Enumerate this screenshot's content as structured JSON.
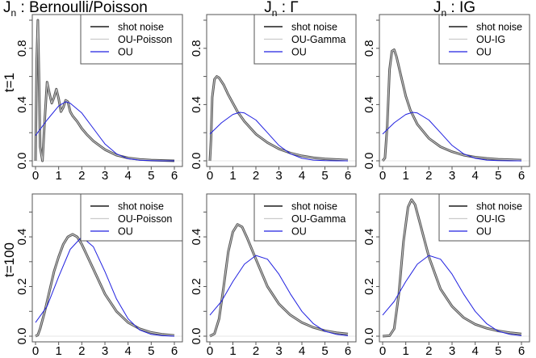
{
  "figure": {
    "row_labels": [
      "t=1",
      "t=100"
    ],
    "col_titles": [
      {
        "main": "J",
        "sub": "n",
        "rest": " :  Bernoulli/Poisson"
      },
      {
        "main": "J",
        "sub": "n",
        "rest": " :  Γ"
      },
      {
        "main": "J",
        "sub": "n",
        "rest": " :  IG"
      }
    ],
    "colors": {
      "shot_noise": "#555555",
      "ou_jump": "#cccccc",
      "ou": "#2020e0",
      "frame": "#555555"
    }
  },
  "chart_data": [
    {
      "type": "line",
      "row": 0,
      "col": 0,
      "title": "Jn : Bernoulli/Poisson",
      "ylabel": "t=1",
      "xlabel": "",
      "xlim": [
        0,
        6
      ],
      "ylim": [
        0,
        1.0
      ],
      "xticks": [
        0,
        1,
        2,
        3,
        4,
        5,
        6
      ],
      "yticks": [
        0.0,
        0.4,
        0.8
      ],
      "yticks_minor": [
        0.2,
        0.6,
        1.0
      ],
      "legend": [
        "shot noise",
        "OU-Poisson",
        "OU"
      ],
      "series": [
        {
          "name": "shot noise",
          "x": [
            0,
            0.05,
            0.1,
            0.15,
            0.2,
            0.3,
            0.4,
            0.5,
            0.6,
            0.7,
            0.8,
            0.9,
            1.0,
            1.1,
            1.2,
            1.3,
            1.4,
            1.5,
            1.6,
            1.8,
            2.0,
            2.2,
            2.5,
            3.0,
            3.5,
            4.0,
            4.5,
            5.0,
            6.0
          ],
          "y": [
            0.0,
            0.7,
            1.0,
            0.6,
            0.1,
            0.0,
            0.3,
            0.56,
            0.48,
            0.41,
            0.45,
            0.51,
            0.44,
            0.35,
            0.38,
            0.43,
            0.42,
            0.35,
            0.32,
            0.28,
            0.23,
            0.19,
            0.14,
            0.08,
            0.04,
            0.02,
            0.01,
            0.005,
            0.0
          ]
        },
        {
          "name": "OU-Poisson",
          "x": [
            0,
            0.05,
            0.1,
            0.15,
            0.2,
            0.3,
            0.4,
            0.5,
            0.6,
            0.7,
            0.8,
            0.9,
            1.0,
            1.1,
            1.2,
            1.3,
            1.4,
            1.5,
            1.6,
            1.8,
            2.0,
            2.2,
            2.5,
            3.0,
            3.5,
            4.0,
            4.5,
            5.0,
            6.0
          ],
          "y": [
            0.0,
            0.7,
            1.0,
            0.6,
            0.1,
            0.0,
            0.3,
            0.56,
            0.48,
            0.41,
            0.45,
            0.51,
            0.44,
            0.35,
            0.38,
            0.43,
            0.42,
            0.35,
            0.32,
            0.28,
            0.23,
            0.19,
            0.14,
            0.08,
            0.04,
            0.02,
            0.01,
            0.005,
            0.0
          ]
        },
        {
          "name": "OU",
          "x": [
            0,
            0.5,
            1.0,
            1.3,
            1.5,
            2.0,
            2.5,
            3.0,
            3.5,
            4.0,
            4.5,
            5.0,
            5.5,
            6.0
          ],
          "y": [
            0.18,
            0.29,
            0.39,
            0.42,
            0.41,
            0.34,
            0.23,
            0.12,
            0.05,
            0.015,
            0.004,
            0.001,
            0.0,
            0.0
          ]
        }
      ]
    },
    {
      "type": "line",
      "row": 0,
      "col": 1,
      "title": "Jn : Γ",
      "ylabel": "",
      "xlabel": "",
      "xlim": [
        0,
        6
      ],
      "ylim": [
        0,
        1.0
      ],
      "xticks": [
        0,
        1,
        2,
        3,
        4,
        5,
        6
      ],
      "yticks": [
        0.0,
        0.4,
        0.8
      ],
      "yticks_minor": [
        0.2,
        0.6,
        1.0
      ],
      "legend": [
        "shot noise",
        "OU-Gamma",
        "OU"
      ],
      "series": [
        {
          "name": "shot noise",
          "x": [
            0,
            0.05,
            0.1,
            0.2,
            0.3,
            0.4,
            0.6,
            0.8,
            1.0,
            1.2,
            1.5,
            2.0,
            2.5,
            3.0,
            3.5,
            4.0,
            4.5,
            5.0,
            6.0
          ],
          "y": [
            0.0,
            0.15,
            0.45,
            0.58,
            0.6,
            0.59,
            0.54,
            0.47,
            0.41,
            0.35,
            0.28,
            0.19,
            0.13,
            0.085,
            0.055,
            0.035,
            0.022,
            0.014,
            0.005
          ]
        },
        {
          "name": "OU-Gamma",
          "x": [
            0,
            0.05,
            0.1,
            0.2,
            0.3,
            0.4,
            0.6,
            0.8,
            1.0,
            1.2,
            1.5,
            2.0,
            2.5,
            3.0,
            3.5,
            4.0,
            4.5,
            5.0,
            6.0
          ],
          "y": [
            0.0,
            0.15,
            0.45,
            0.58,
            0.6,
            0.59,
            0.54,
            0.47,
            0.41,
            0.35,
            0.28,
            0.19,
            0.13,
            0.085,
            0.055,
            0.035,
            0.022,
            0.014,
            0.005
          ]
        },
        {
          "name": "OU",
          "x": [
            0,
            0.5,
            1.0,
            1.3,
            1.5,
            2.0,
            2.5,
            3.0,
            3.5,
            4.0,
            4.5,
            5.0,
            5.5,
            6.0
          ],
          "y": [
            0.19,
            0.27,
            0.33,
            0.345,
            0.34,
            0.29,
            0.2,
            0.11,
            0.05,
            0.018,
            0.005,
            0.001,
            0.0,
            0.0
          ]
        }
      ]
    },
    {
      "type": "line",
      "row": 0,
      "col": 2,
      "title": "Jn : IG",
      "ylabel": "",
      "xlabel": "",
      "xlim": [
        0,
        6
      ],
      "ylim": [
        0,
        1.0
      ],
      "xticks": [
        0,
        1,
        2,
        3,
        4,
        5,
        6
      ],
      "yticks": [
        0.0,
        0.4,
        0.8
      ],
      "yticks_minor": [
        0.2,
        0.6,
        1.0
      ],
      "legend": [
        "shot noise",
        "OU-IG",
        "OU"
      ],
      "series": [
        {
          "name": "shot noise",
          "x": [
            0,
            0.1,
            0.2,
            0.3,
            0.4,
            0.5,
            0.6,
            0.8,
            1.0,
            1.2,
            1.5,
            2.0,
            2.5,
            3.0,
            3.5,
            4.0,
            4.5,
            5.0,
            6.0
          ],
          "y": [
            0.0,
            0.02,
            0.25,
            0.65,
            0.78,
            0.79,
            0.74,
            0.6,
            0.46,
            0.36,
            0.26,
            0.16,
            0.1,
            0.065,
            0.04,
            0.026,
            0.017,
            0.011,
            0.005
          ]
        },
        {
          "name": "OU-IG",
          "x": [
            0,
            0.1,
            0.2,
            0.3,
            0.4,
            0.5,
            0.6,
            0.8,
            1.0,
            1.2,
            1.5,
            2.0,
            2.5,
            3.0,
            3.5,
            4.0,
            4.5,
            5.0,
            6.0
          ],
          "y": [
            0.0,
            0.02,
            0.25,
            0.65,
            0.78,
            0.79,
            0.74,
            0.6,
            0.46,
            0.36,
            0.26,
            0.16,
            0.1,
            0.065,
            0.04,
            0.026,
            0.017,
            0.011,
            0.005
          ]
        },
        {
          "name": "OU",
          "x": [
            0,
            0.5,
            1.0,
            1.3,
            1.5,
            2.0,
            2.5,
            3.0,
            3.5,
            4.0,
            4.5,
            5.0,
            5.5,
            6.0
          ],
          "y": [
            0.19,
            0.27,
            0.33,
            0.345,
            0.34,
            0.29,
            0.2,
            0.11,
            0.05,
            0.018,
            0.005,
            0.001,
            0.0,
            0.0
          ]
        }
      ]
    },
    {
      "type": "line",
      "row": 1,
      "col": 0,
      "title": "",
      "ylabel": "t=100",
      "xlabel": "",
      "xlim": [
        0,
        6
      ],
      "ylim": [
        0,
        0.55
      ],
      "xticks": [
        0,
        1,
        2,
        3,
        4,
        5,
        6
      ],
      "yticks": [
        0.0,
        0.2,
        0.4
      ],
      "yticks_minor": [
        0.1,
        0.3,
        0.5
      ],
      "legend": [
        "shot noise",
        "OU-Poisson",
        "OU"
      ],
      "series": [
        {
          "name": "shot noise",
          "x": [
            0,
            0.1,
            0.2,
            0.4,
            0.6,
            0.8,
            1.0,
            1.2,
            1.4,
            1.6,
            1.8,
            2.0,
            2.2,
            2.5,
            3.0,
            3.5,
            4.0,
            4.5,
            5.0,
            5.5,
            6.0
          ],
          "y": [
            0.0,
            0.005,
            0.03,
            0.1,
            0.18,
            0.26,
            0.32,
            0.37,
            0.4,
            0.41,
            0.4,
            0.37,
            0.33,
            0.27,
            0.17,
            0.1,
            0.055,
            0.03,
            0.015,
            0.007,
            0.003
          ]
        },
        {
          "name": "OU-Poisson",
          "x": [
            0,
            0.1,
            0.2,
            0.4,
            0.6,
            0.8,
            1.0,
            1.2,
            1.4,
            1.6,
            1.8,
            2.0,
            2.2,
            2.5,
            3.0,
            3.5,
            4.0,
            4.5,
            5.0,
            5.5,
            6.0
          ],
          "y": [
            0.0,
            0.005,
            0.03,
            0.1,
            0.18,
            0.26,
            0.32,
            0.37,
            0.4,
            0.41,
            0.4,
            0.37,
            0.33,
            0.27,
            0.17,
            0.1,
            0.055,
            0.03,
            0.015,
            0.007,
            0.003
          ]
        },
        {
          "name": "OU",
          "x": [
            0,
            0.5,
            1.0,
            1.5,
            2.0,
            2.5,
            3.0,
            3.5,
            4.0,
            4.5,
            5.0,
            5.5,
            6.0
          ],
          "y": [
            0.055,
            0.12,
            0.24,
            0.35,
            0.4,
            0.36,
            0.26,
            0.15,
            0.07,
            0.025,
            0.007,
            0.002,
            0.0
          ]
        }
      ]
    },
    {
      "type": "line",
      "row": 1,
      "col": 1,
      "title": "",
      "ylabel": "",
      "xlabel": "",
      "xlim": [
        0,
        6
      ],
      "ylim": [
        0,
        0.55
      ],
      "xticks": [
        0,
        1,
        2,
        3,
        4,
        5,
        6
      ],
      "yticks": [
        0.0,
        0.2,
        0.4
      ],
      "yticks_minor": [
        0.1,
        0.3,
        0.5
      ],
      "legend": [
        "shot noise",
        "OU-Gamma",
        "OU"
      ],
      "series": [
        {
          "name": "shot noise",
          "x": [
            0,
            0.2,
            0.4,
            0.6,
            0.8,
            1.0,
            1.2,
            1.4,
            1.6,
            2.0,
            2.5,
            3.0,
            3.5,
            4.0,
            4.5,
            5.0,
            5.5,
            6.0
          ],
          "y": [
            0.0,
            0.01,
            0.07,
            0.2,
            0.34,
            0.42,
            0.45,
            0.44,
            0.4,
            0.31,
            0.2,
            0.13,
            0.085,
            0.055,
            0.035,
            0.022,
            0.014,
            0.009
          ]
        },
        {
          "name": "OU-Gamma",
          "x": [
            0,
            0.2,
            0.4,
            0.6,
            0.8,
            1.0,
            1.2,
            1.4,
            1.6,
            2.0,
            2.5,
            3.0,
            3.5,
            4.0,
            4.5,
            5.0,
            5.5,
            6.0
          ],
          "y": [
            0.0,
            0.01,
            0.07,
            0.2,
            0.34,
            0.42,
            0.45,
            0.44,
            0.4,
            0.31,
            0.2,
            0.13,
            0.085,
            0.055,
            0.035,
            0.022,
            0.014,
            0.009
          ]
        },
        {
          "name": "OU",
          "x": [
            0,
            0.5,
            1.0,
            1.5,
            2.0,
            2.5,
            3.0,
            3.5,
            4.0,
            4.5,
            5.0,
            5.5,
            6.0
          ],
          "y": [
            0.085,
            0.14,
            0.22,
            0.29,
            0.325,
            0.31,
            0.25,
            0.17,
            0.1,
            0.05,
            0.02,
            0.007,
            0.002
          ]
        }
      ]
    },
    {
      "type": "line",
      "row": 1,
      "col": 2,
      "title": "",
      "ylabel": "",
      "xlabel": "",
      "xlim": [
        0,
        6
      ],
      "ylim": [
        0,
        0.55
      ],
      "xticks": [
        0,
        1,
        2,
        3,
        4,
        5,
        6
      ],
      "yticks": [
        0.0,
        0.2,
        0.4
      ],
      "yticks_minor": [
        0.1,
        0.3,
        0.5
      ],
      "legend": [
        "shot noise",
        "OU-IG",
        "OU"
      ],
      "series": [
        {
          "name": "shot noise",
          "x": [
            0,
            0.3,
            0.5,
            0.7,
            0.9,
            1.1,
            1.25,
            1.4,
            1.6,
            1.8,
            2.0,
            2.5,
            3.0,
            3.5,
            4.0,
            4.5,
            5.0,
            5.5,
            6.0
          ],
          "y": [
            0.0,
            0.002,
            0.03,
            0.17,
            0.38,
            0.52,
            0.55,
            0.53,
            0.46,
            0.39,
            0.32,
            0.19,
            0.12,
            0.075,
            0.048,
            0.032,
            0.021,
            0.014,
            0.009
          ]
        },
        {
          "name": "OU-IG",
          "x": [
            0,
            0.3,
            0.5,
            0.7,
            0.9,
            1.1,
            1.25,
            1.4,
            1.6,
            1.8,
            2.0,
            2.5,
            3.0,
            3.5,
            4.0,
            4.5,
            5.0,
            5.5,
            6.0
          ],
          "y": [
            0.0,
            0.002,
            0.03,
            0.17,
            0.38,
            0.52,
            0.55,
            0.53,
            0.46,
            0.39,
            0.32,
            0.19,
            0.12,
            0.075,
            0.048,
            0.032,
            0.021,
            0.014,
            0.009
          ]
        },
        {
          "name": "OU",
          "x": [
            0,
            0.5,
            1.0,
            1.5,
            2.0,
            2.5,
            3.0,
            3.5,
            4.0,
            4.5,
            5.0,
            5.5,
            6.0
          ],
          "y": [
            0.085,
            0.14,
            0.22,
            0.29,
            0.325,
            0.31,
            0.25,
            0.17,
            0.1,
            0.05,
            0.02,
            0.007,
            0.002
          ]
        }
      ]
    }
  ]
}
